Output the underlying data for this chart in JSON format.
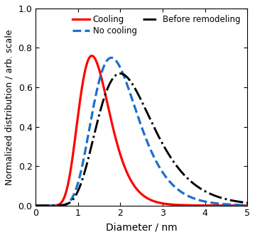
{
  "title": "",
  "xlabel": "Diameter / nm",
  "ylabel": "Normalized distribution / arb. scale",
  "xlim": [
    0,
    5
  ],
  "ylim": [
    0,
    1.0
  ],
  "xticks": [
    0,
    1,
    2,
    3,
    4,
    5
  ],
  "yticks": [
    0.0,
    0.2,
    0.4,
    0.6,
    0.8,
    1.0
  ],
  "curves": [
    {
      "label": "Cooling",
      "color": "#ff0000",
      "linestyle": "solid",
      "linewidth": 2.3,
      "mu": 0.36,
      "sigma": 0.28,
      "peak": 0.76
    },
    {
      "label": "No cooling",
      "color": "#1a6fcc",
      "linestyle": "dashed",
      "linewidth": 2.3,
      "mu": 0.67,
      "sigma": 0.3,
      "peak": 0.75
    },
    {
      "label": "Before remodeling",
      "color": "#000000",
      "linestyle": "dashdot",
      "linewidth": 2.1,
      "mu": 0.8,
      "sigma": 0.33,
      "peak": 0.67
    }
  ],
  "legend_ncol": 2,
  "figsize": [
    3.59,
    3.34
  ],
  "dpi": 100
}
